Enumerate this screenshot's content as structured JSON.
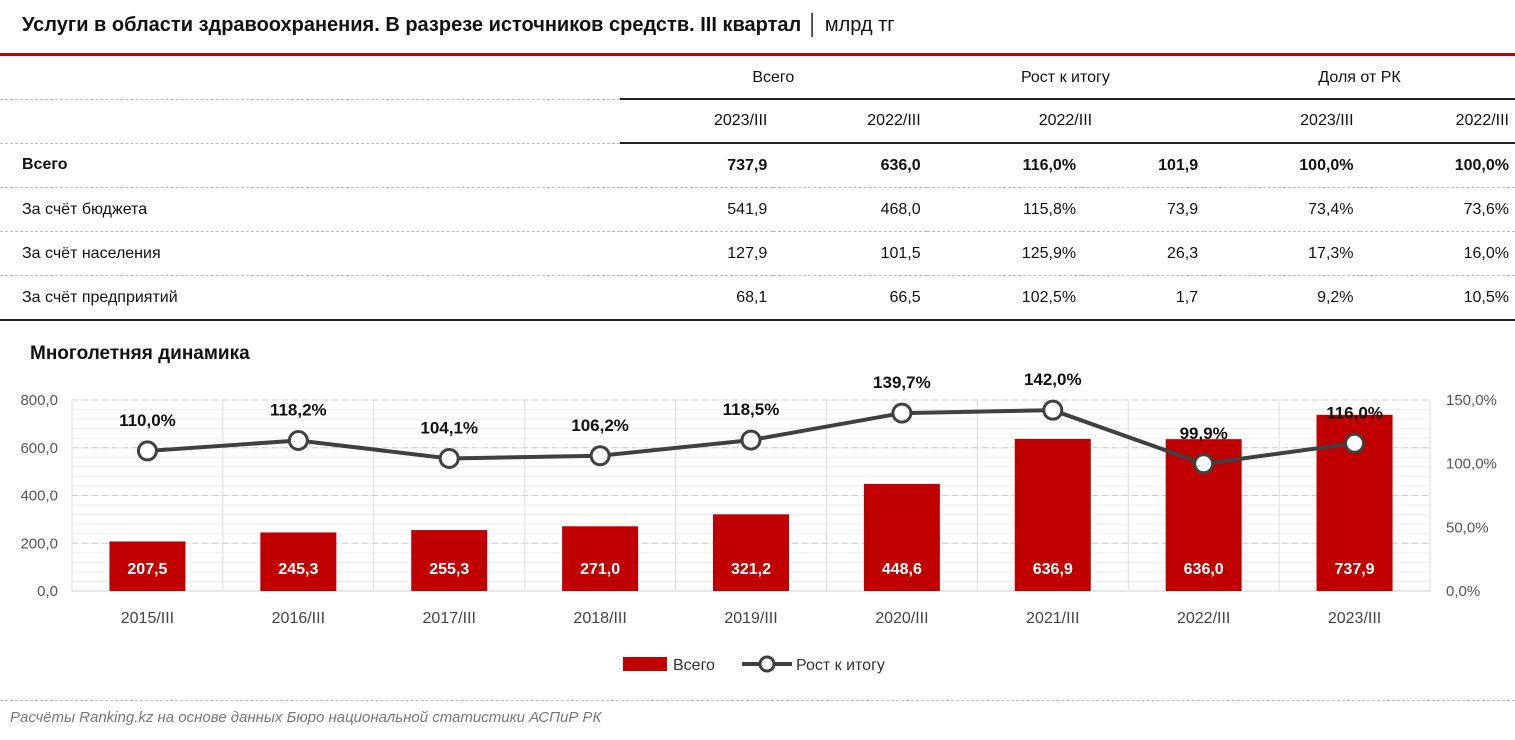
{
  "header": {
    "title": "Услуги в области здравоохранения. В разрезе источников средств. III квартал",
    "unit": "│ млрд тг"
  },
  "table": {
    "groups": [
      "Всего",
      "Рост к итогу",
      "Доля от РК"
    ],
    "subheaders": [
      "2023/III",
      "2022/III",
      "2022/III",
      "2023/III",
      "2022/III"
    ],
    "rows": [
      {
        "label": "Всего",
        "values": [
          "737,9",
          "636,0",
          "116,0%",
          "101,9",
          "100,0%",
          "100,0%"
        ]
      },
      {
        "label": "За счёт бюджета",
        "values": [
          "541,9",
          "468,0",
          "115,8%",
          "73,9",
          "73,4%",
          "73,6%"
        ]
      },
      {
        "label": "За счёт населения",
        "values": [
          "127,9",
          "101,5",
          "125,9%",
          "26,3",
          "17,3%",
          "16,0%"
        ]
      },
      {
        "label": "За счёт предприятий",
        "values": [
          "68,1",
          "66,5",
          "102,5%",
          "1,7",
          "9,2%",
          "10,5%"
        ]
      }
    ]
  },
  "chart_data": {
    "type": "bar+line",
    "title": "Многолетняя динамика",
    "categories": [
      "2015/III",
      "2016/III",
      "2017/III",
      "2018/III",
      "2019/III",
      "2020/III",
      "2021/III",
      "2022/III",
      "2023/III"
    ],
    "series": [
      {
        "name": "Всего",
        "type": "bar",
        "axis": "left",
        "color": "#c00000",
        "values": [
          207.5,
          245.3,
          255.3,
          271.0,
          321.2,
          448.6,
          636.9,
          636.0,
          737.9
        ],
        "labels": [
          "207,5",
          "245,3",
          "255,3",
          "271,0",
          "321,2",
          "448,6",
          "636,9",
          "636,0",
          "737,9"
        ]
      },
      {
        "name": "Рост к итогу",
        "type": "line",
        "axis": "right",
        "color": "#404040",
        "values": [
          110.0,
          118.2,
          104.1,
          106.2,
          118.5,
          139.7,
          142.0,
          99.9,
          116.0
        ],
        "labels": [
          "110,0%",
          "118,2%",
          "104,1%",
          "106,2%",
          "118,5%",
          "139,7%",
          "142,0%",
          "99,9%",
          "116,0%"
        ]
      }
    ],
    "y_left": {
      "range": [
        0,
        800
      ],
      "ticks": [
        "0,0",
        "200,0",
        "400,0",
        "600,0",
        "800,0"
      ]
    },
    "y_right": {
      "range": [
        0,
        150
      ],
      "ticks": [
        "0,0%",
        "50,0%",
        "100,0%",
        "150,0%"
      ]
    },
    "grid": true,
    "legend": "bottom"
  },
  "footer": {
    "source": "Расчёты Ranking.kz на основе данных Бюро национальной статистики АСПиР РК"
  }
}
